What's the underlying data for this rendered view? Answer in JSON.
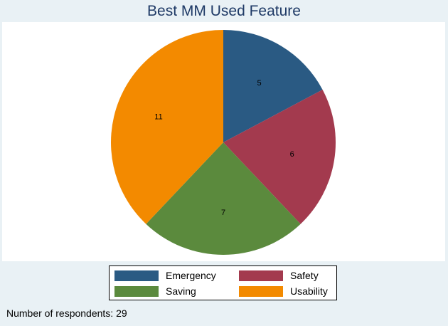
{
  "chart_data": {
    "type": "pie",
    "title": "Best MM Used Feature",
    "categories": [
      "Emergency",
      "Safety",
      "Saving",
      "Usability"
    ],
    "values": [
      5,
      6,
      7,
      11
    ],
    "colors": [
      "#2a5a83",
      "#a33a4e",
      "#5b8a3d",
      "#f38a00"
    ],
    "data_labels": [
      "5",
      "6",
      "7",
      "11"
    ],
    "start": "12 o'clock",
    "direction": "clockwise",
    "legend_position": "bottom"
  },
  "legend": {
    "items": [
      {
        "label": "Emergency",
        "color": "#2a5a83"
      },
      {
        "label": "Safety",
        "color": "#a33a4e"
      },
      {
        "label": "Saving",
        "color": "#5b8a3d"
      },
      {
        "label": "Usability",
        "color": "#f38a00"
      }
    ]
  },
  "footnote": "Number of respondents: 29"
}
